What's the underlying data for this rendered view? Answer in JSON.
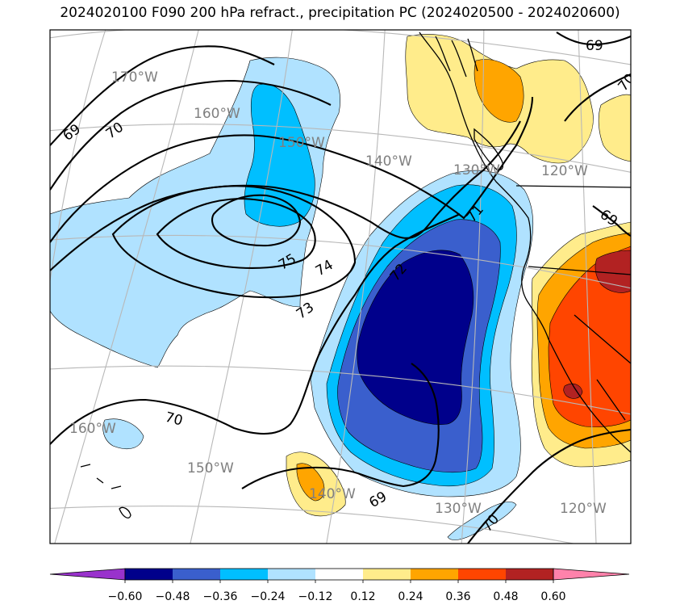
{
  "title": "2024020100 F090 200 hPa refract., precipitation PC (2024020500 - 2024020600)",
  "longitude_labels": {
    "top_170W": "170°W",
    "top_160W": "160°W",
    "top_150W": "150°W",
    "top_140W": "140°W",
    "top_130W": "130°W",
    "top_120W": "120°W",
    "bottom_160W": "160°W",
    "bottom_150W": "150°W",
    "bottom_140W": "140°W",
    "bottom_130W": "130°W",
    "bottom_120W": "120°W"
  },
  "contour_labels": {
    "c69_nw": "69",
    "c70_nw": "70",
    "c75": "75",
    "c74": "74",
    "c73": "73",
    "c72": "72",
    "c71": "71",
    "c70_sw": "70",
    "c69_s": "69",
    "c70_s": "70",
    "c69_ne": "69",
    "c70_ne": "70",
    "c69_e": "69"
  },
  "colorbar": {
    "ticks": [
      "−0.60",
      "−0.48",
      "−0.36",
      "−0.24",
      "−0.12",
      "0.12",
      "0.24",
      "0.36",
      "0.48",
      "0.60"
    ],
    "colors": [
      "#9932cc",
      "#00008b",
      "#3a5fcd",
      "#00bfff",
      "#b0e2ff",
      "#ffffff",
      "#ffec8b",
      "#ffa500",
      "#ff4500",
      "#b22222",
      "#ff82ab"
    ]
  },
  "field_colors": {
    "lt_blue": "#b0e2ff",
    "blue": "#00bfff",
    "mid_blue": "#3a5fcd",
    "navy": "#00008b",
    "yellow": "#ffec8b",
    "orange": "#ffa500",
    "red_orange": "#ff4500",
    "dark_red": "#b22222"
  }
}
